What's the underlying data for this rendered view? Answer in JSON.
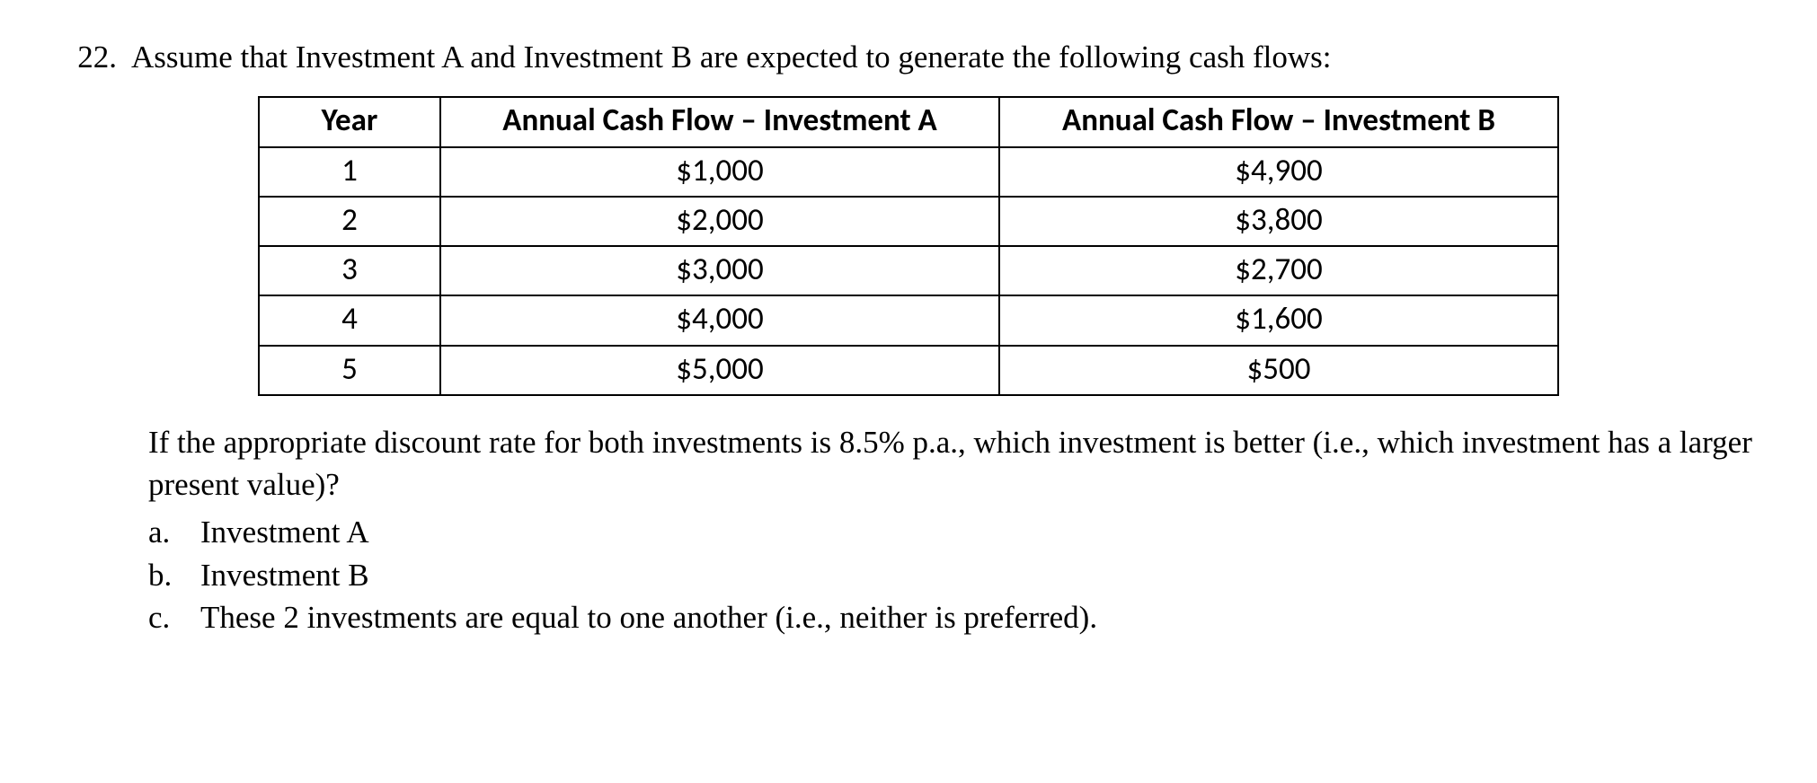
{
  "question_number": "22.",
  "question_text": "Assume that Investment A and Investment B are expected to generate the following cash flows:",
  "table": {
    "headers": [
      "Year",
      "Annual Cash Flow – Investment A",
      "Annual Cash Flow – Investment B"
    ],
    "rows": [
      [
        "1",
        "$1,000",
        "$4,900"
      ],
      [
        "2",
        "$2,000",
        "$3,800"
      ],
      [
        "3",
        "$3,000",
        "$2,700"
      ],
      [
        "4",
        "$4,000",
        "$1,600"
      ],
      [
        "5",
        "$5,000",
        "$500"
      ]
    ]
  },
  "followup_text": "If the appropriate discount rate for both investments is 8.5% p.a., which investment is better (i.e., which investment has a larger present value)?",
  "choices": [
    {
      "letter": "a.",
      "text": "Investment A"
    },
    {
      "letter": "b.",
      "text": "Investment B"
    },
    {
      "letter": "c.",
      "text": "These 2 investments are equal to one another (i.e., neither is preferred)."
    }
  ]
}
